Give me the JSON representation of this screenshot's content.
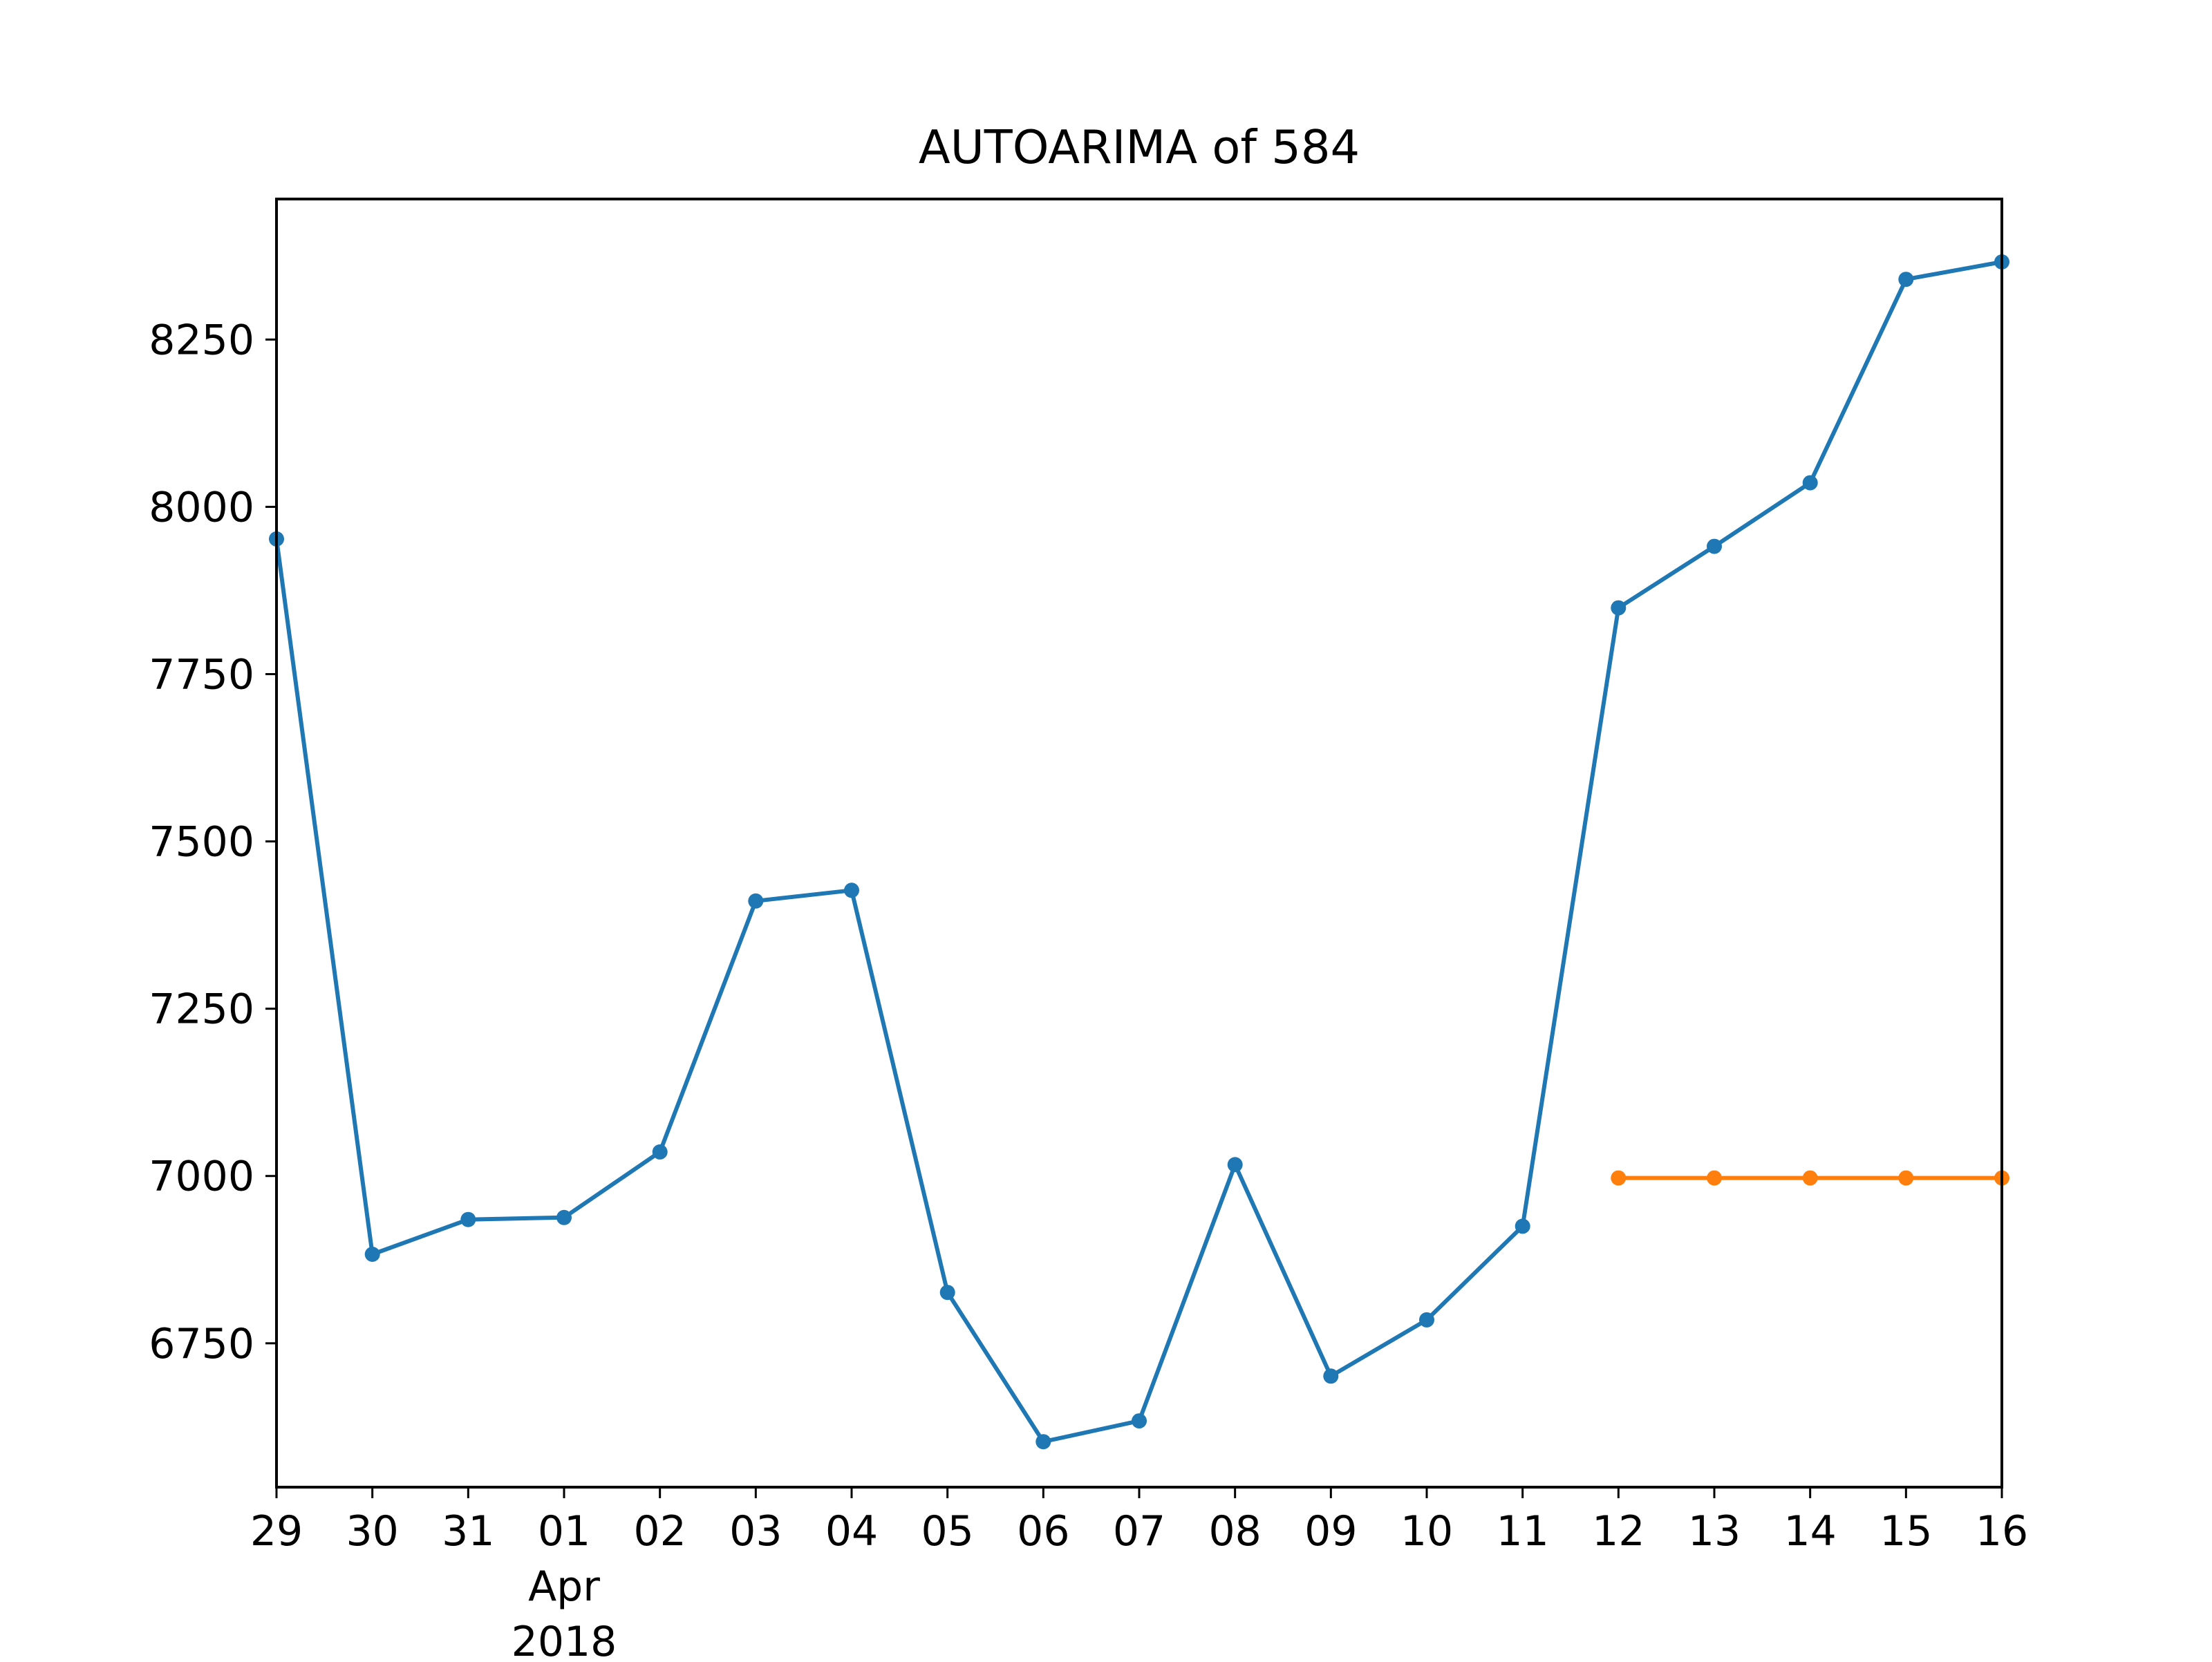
{
  "chart_data": {
    "type": "line",
    "title": "AUTOARIMA of 584",
    "xlabel": "",
    "ylabel": "",
    "x": [
      "2018-03-29",
      "2018-03-30",
      "2018-03-31",
      "2018-04-01",
      "2018-04-02",
      "2018-04-03",
      "2018-04-04",
      "2018-04-05",
      "2018-04-06",
      "2018-04-07",
      "2018-04-08",
      "2018-04-09",
      "2018-04-10",
      "2018-04-11",
      "2018-04-12",
      "2018-04-13",
      "2018-04-14",
      "2018-04-15",
      "2018-04-16"
    ],
    "x_tick_labels": [
      "29",
      "30",
      "31",
      "01",
      "02",
      "03",
      "04",
      "05",
      "06",
      "07",
      "08",
      "09",
      "10",
      "11",
      "12",
      "13",
      "14",
      "15",
      "16"
    ],
    "x_tick_sublabel": {
      "index": 3,
      "month": "Apr",
      "year": "2018"
    },
    "y_ticks": [
      6750,
      7000,
      7250,
      7500,
      7750,
      8000,
      8250
    ],
    "ylim": [
      6535,
      8460
    ],
    "grid": false,
    "series": [
      {
        "color": "#1f77b4",
        "x": [
          "2018-03-29",
          "2018-03-30",
          "2018-03-31",
          "2018-04-01",
          "2018-04-02",
          "2018-04-03",
          "2018-04-04",
          "2018-04-05",
          "2018-04-06",
          "2018-04-07",
          "2018-04-08",
          "2018-04-09",
          "2018-04-10",
          "2018-04-11",
          "2018-04-12",
          "2018-04-13",
          "2018-04-14",
          "2018-04-15",
          "2018-04-16"
        ],
        "values": [
          7952,
          6883,
          6935,
          6938,
          7036,
          7411,
          7427,
          6826,
          6603,
          6634,
          7017,
          6701,
          6785,
          6925,
          7849,
          7941,
          8036,
          8340,
          8366
        ]
      },
      {
        "color": "#ff7f0e",
        "x": [
          "2018-04-12",
          "2018-04-13",
          "2018-04-14",
          "2018-04-15",
          "2018-04-16"
        ],
        "values": [
          6997,
          6997,
          6997,
          6997,
          6997
        ]
      }
    ]
  }
}
